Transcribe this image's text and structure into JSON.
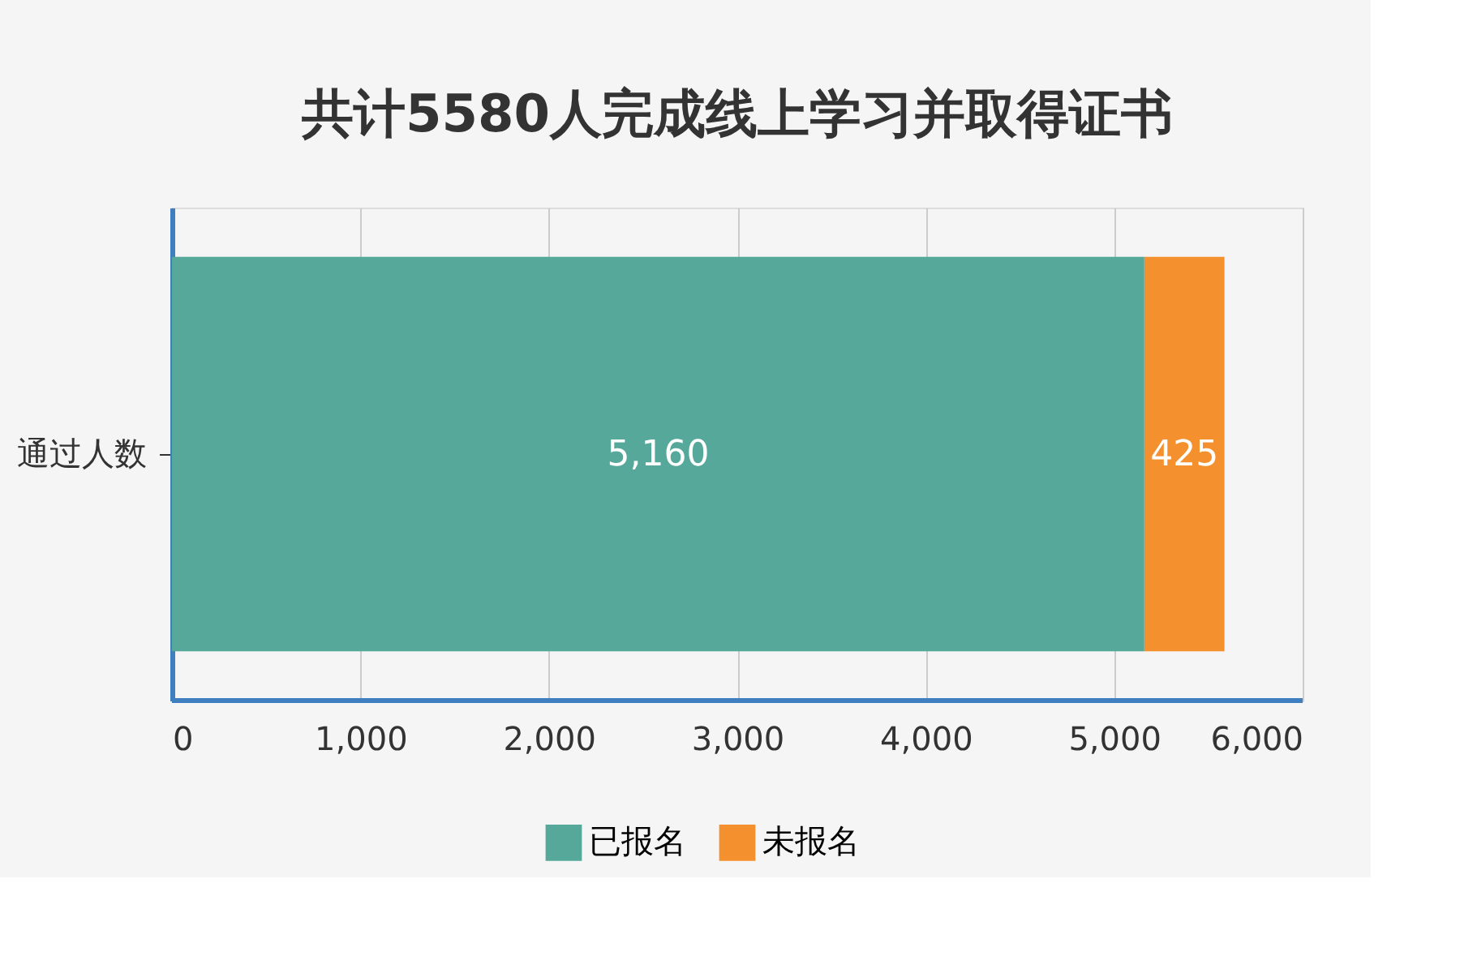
{
  "chart_data": {
    "type": "bar",
    "orientation": "horizontal",
    "stacked": true,
    "title": "共计5580人完成线上学习并取得证书",
    "categories": [
      "通过人数"
    ],
    "series": [
      {
        "name": "已报名",
        "color": "#55a89a",
        "values": [
          5160
        ],
        "value_labels": [
          "5,160"
        ]
      },
      {
        "name": "未报名",
        "color": "#f5902f",
        "values": [
          425
        ],
        "value_labels": [
          "425"
        ]
      }
    ],
    "xlim": [
      0,
      6000
    ],
    "xticks": [
      {
        "value": 0,
        "label": "0"
      },
      {
        "value": 1000,
        "label": "1,000"
      },
      {
        "value": 2000,
        "label": "2,000"
      },
      {
        "value": 3000,
        "label": "3,000"
      },
      {
        "value": 4000,
        "label": "4,000"
      },
      {
        "value": 5000,
        "label": "5,000"
      },
      {
        "value": 6000,
        "label": "6,000"
      }
    ],
    "grid": "x",
    "legend": "bottom"
  }
}
